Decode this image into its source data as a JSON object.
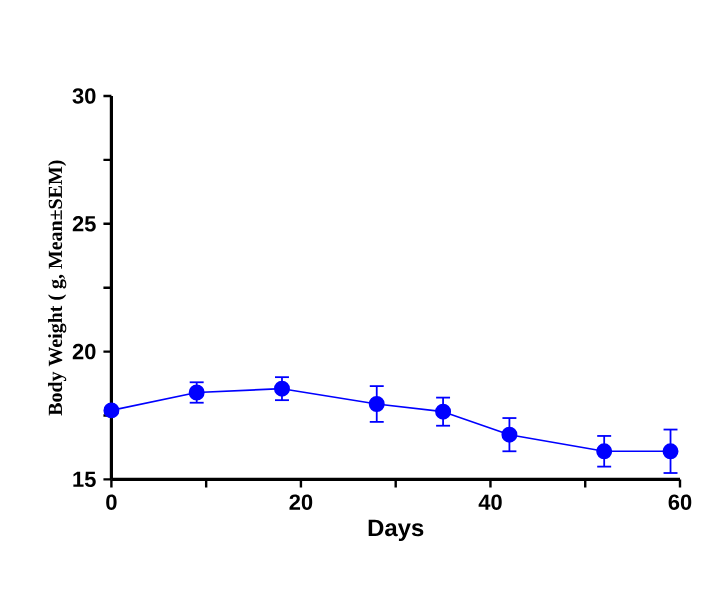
{
  "chart_data": {
    "type": "line",
    "xlabel": "Days",
    "ylabel": "Body Weight ( g, Mean±SEM)",
    "x": [
      0,
      9,
      18,
      28,
      35,
      42,
      52,
      59
    ],
    "series": [
      {
        "color": "#0000ff",
        "values": [
          17.7,
          18.4,
          18.55,
          17.95,
          17.65,
          16.75,
          16.1,
          16.1
        ],
        "errors": [
          0.1,
          0.4,
          0.45,
          0.7,
          0.55,
          0.65,
          0.6,
          0.85
        ]
      }
    ],
    "xlim": [
      0,
      60
    ],
    "ylim": [
      15,
      30
    ],
    "xticks": [
      0,
      {
        "value": 10,
        "label": null
      },
      20,
      {
        "value": 30,
        "label": null
      },
      40,
      {
        "value": 50,
        "label": null
      },
      60
    ],
    "yticks": [
      15,
      {
        "value": 17.5,
        "label": null
      },
      20,
      {
        "value": 22.5,
        "label": null
      },
      25,
      {
        "value": 27.5,
        "label": null
      },
      30
    ],
    "marker": "circle",
    "line_style": "solid",
    "grid": false
  }
}
